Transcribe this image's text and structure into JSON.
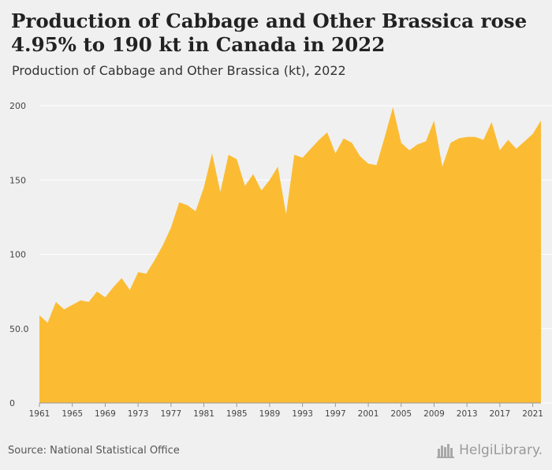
{
  "header": {
    "title": "Production of Cabbage and Other Brassica rose 4.95% to 190 kt in Canada in 2022",
    "subtitle": "Production of Cabbage and Other Brassica (kt), 2022"
  },
  "footer": {
    "source": "Source: National Statistical Office",
    "brand": "HelgiLibrary."
  },
  "colors": {
    "fill": "#fbbc34",
    "background": "#f0f0f0",
    "grid": "#ffffff",
    "tick_text": "#444444"
  },
  "chart_data": {
    "type": "area",
    "title": "Production of Cabbage and Other Brassica rose 4.95% to 190 kt in Canada in 2022",
    "ylabel": "",
    "xlabel": "",
    "ylim": [
      0,
      200
    ],
    "yticks": [
      0,
      50,
      100,
      150,
      200
    ],
    "ytick_labels": [
      "0",
      "50.0",
      "100",
      "150",
      "200"
    ],
    "xticks": [
      1961,
      1965,
      1969,
      1973,
      1977,
      1981,
      1985,
      1989,
      1993,
      1997,
      2001,
      2005,
      2009,
      2013,
      2017,
      2021
    ],
    "grid": true,
    "x": [
      1961,
      1962,
      1963,
      1964,
      1965,
      1966,
      1967,
      1968,
      1969,
      1970,
      1971,
      1972,
      1973,
      1974,
      1975,
      1976,
      1977,
      1978,
      1979,
      1980,
      1981,
      1982,
      1983,
      1984,
      1985,
      1986,
      1987,
      1988,
      1989,
      1990,
      1991,
      1992,
      1993,
      1994,
      1995,
      1996,
      1997,
      1998,
      1999,
      2000,
      2001,
      2002,
      2003,
      2004,
      2005,
      2006,
      2007,
      2008,
      2009,
      2010,
      2011,
      2012,
      2013,
      2014,
      2015,
      2016,
      2017,
      2018,
      2019,
      2020,
      2021,
      2022
    ],
    "series": [
      {
        "values": [
          59,
          54,
          68,
          63,
          66,
          69,
          68,
          75,
          71,
          78,
          84,
          76,
          88,
          87,
          96,
          106,
          118,
          135,
          133,
          129,
          145,
          168,
          142,
          167,
          164,
          146,
          154,
          143,
          150,
          159,
          127,
          167,
          165,
          171,
          177,
          182,
          168,
          178,
          175,
          166,
          161,
          160,
          179,
          199,
          175,
          170,
          174,
          176,
          190,
          159,
          175,
          178,
          179,
          179,
          177,
          189,
          170,
          177,
          171,
          176,
          181,
          190
        ]
      }
    ]
  }
}
